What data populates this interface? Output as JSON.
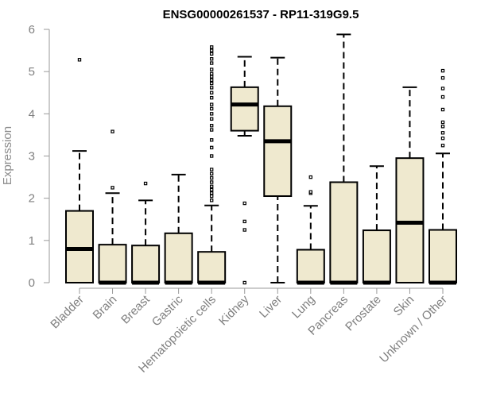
{
  "chart_data": {
    "type": "boxplot",
    "title": "ENSG00000261537 - RP11-319G9.5",
    "xlabel": "",
    "ylabel": "Expression",
    "ylim": [
      0,
      6
    ],
    "yticks": [
      0,
      1,
      2,
      3,
      4,
      5,
      6
    ],
    "box_color": "#efe9cf",
    "stroke_color": "#000000",
    "grid": false,
    "categories": [
      "Bladder",
      "Brain",
      "Breast",
      "Gastric",
      "Hematopoietic cells",
      "Kidney",
      "Liver",
      "Lung",
      "Pancreas",
      "Prostate",
      "Skin",
      "Unknown / Other"
    ],
    "boxes": [
      {
        "category": "Bladder",
        "whisker_low": 0,
        "q1": 0,
        "median": 0.8,
        "q3": 1.7,
        "whisker_high": 3.12,
        "outliers": [
          5.28
        ]
      },
      {
        "category": "Brain",
        "whisker_low": 0,
        "q1": 0,
        "median": 0,
        "q3": 0.9,
        "whisker_high": 2.12,
        "outliers": [
          2.25,
          3.58
        ]
      },
      {
        "category": "Breast",
        "whisker_low": 0,
        "q1": 0,
        "median": 0,
        "q3": 0.88,
        "whisker_high": 1.95,
        "outliers": [
          2.35
        ]
      },
      {
        "category": "Gastric",
        "whisker_low": 0,
        "q1": 0,
        "median": 0,
        "q3": 1.17,
        "whisker_high": 2.56,
        "outliers": []
      },
      {
        "category": "Hematopoietic cells",
        "whisker_low": 0,
        "q1": 0,
        "median": 0,
        "q3": 0.73,
        "whisker_high": 1.83,
        "outliers": [
          1.95,
          2.05,
          2.12,
          2.2,
          2.28,
          2.38,
          2.48,
          2.58,
          2.68,
          3.0,
          3.2,
          3.38,
          3.62,
          3.72,
          3.88,
          4.0,
          4.12,
          4.22,
          4.38,
          4.5,
          4.62,
          4.72,
          4.8,
          4.88,
          4.95,
          5.05,
          5.2,
          5.3,
          5.42,
          5.5,
          5.58
        ]
      },
      {
        "category": "Kidney",
        "whisker_low": 3.48,
        "q1": 3.6,
        "median": 4.22,
        "q3": 4.63,
        "whisker_high": 5.35,
        "outliers": [
          0.0,
          1.25,
          1.45,
          1.88
        ]
      },
      {
        "category": "Liver",
        "whisker_low": 0,
        "q1": 2.05,
        "median": 3.35,
        "q3": 4.18,
        "whisker_high": 5.33,
        "outliers": []
      },
      {
        "category": "Lung",
        "whisker_low": 0,
        "q1": 0,
        "median": 0,
        "q3": 0.78,
        "whisker_high": 1.82,
        "outliers": [
          2.12,
          2.15,
          2.5
        ]
      },
      {
        "category": "Pancreas",
        "whisker_low": 0,
        "q1": 0,
        "median": 0,
        "q3": 2.38,
        "whisker_high": 5.88,
        "outliers": []
      },
      {
        "category": "Prostate",
        "whisker_low": 0,
        "q1": 0,
        "median": 0,
        "q3": 1.24,
        "whisker_high": 2.76,
        "outliers": []
      },
      {
        "category": "Skin",
        "whisker_low": 0,
        "q1": 0,
        "median": 1.42,
        "q3": 2.95,
        "whisker_high": 4.63,
        "outliers": []
      },
      {
        "category": "Unknown / Other",
        "whisker_low": 0,
        "q1": 0,
        "median": 0,
        "q3": 1.25,
        "whisker_high": 3.06,
        "outliers": [
          3.25,
          3.42,
          3.55,
          3.7,
          3.8,
          4.1,
          4.4,
          4.6,
          4.85,
          5.02
        ]
      }
    ]
  }
}
